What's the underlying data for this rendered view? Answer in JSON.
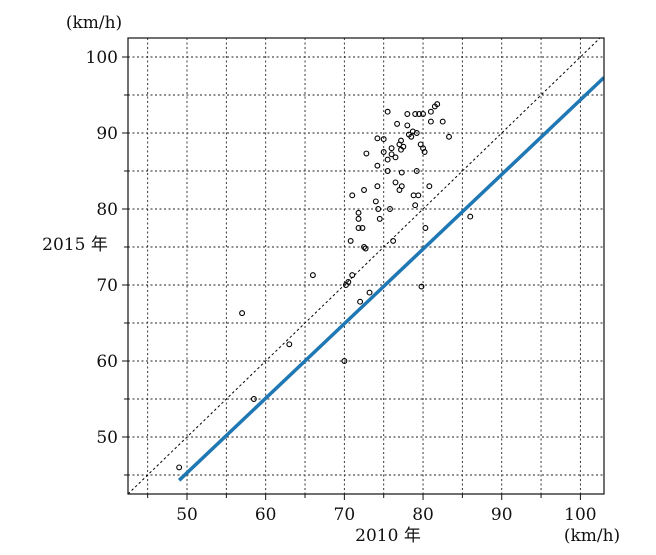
{
  "chart_data": {
    "type": "scatter",
    "title": "",
    "xlabel": "2010 年",
    "ylabel": "2015 年",
    "x_unit": "(km/h)",
    "y_unit": "(km/h)",
    "xlim": [
      42.5,
      103
    ],
    "ylim": [
      42.5,
      102.5
    ],
    "xticks": [
      50,
      60,
      70,
      80,
      90,
      100
    ],
    "yticks": [
      50,
      60,
      70,
      80,
      90,
      100
    ],
    "grid": true,
    "grid_style": "dotted",
    "series": [
      {
        "kind": "points",
        "marker": "open-circle",
        "color": "#000000",
        "points": [
          [
            49.0,
            46.0
          ],
          [
            57.0,
            66.3
          ],
          [
            58.5,
            55.0
          ],
          [
            63.0,
            62.2
          ],
          [
            66.0,
            71.3
          ],
          [
            70.0,
            60.0
          ],
          [
            70.2,
            70.0
          ],
          [
            70.5,
            70.4
          ],
          [
            70.8,
            75.8
          ],
          [
            71.0,
            81.8
          ],
          [
            71.0,
            71.3
          ],
          [
            71.8,
            79.5
          ],
          [
            71.8,
            78.7
          ],
          [
            71.8,
            77.5
          ],
          [
            72.0,
            67.8
          ],
          [
            72.3,
            77.5
          ],
          [
            72.5,
            75.0
          ],
          [
            72.5,
            82.5
          ],
          [
            72.7,
            74.8
          ],
          [
            72.8,
            87.3
          ],
          [
            73.2,
            69.0
          ],
          [
            74.0,
            81.0
          ],
          [
            74.2,
            83.0
          ],
          [
            74.2,
            89.3
          ],
          [
            74.2,
            85.7
          ],
          [
            74.3,
            80.0
          ],
          [
            74.5,
            78.7
          ],
          [
            75.0,
            89.2
          ],
          [
            75.0,
            87.5
          ],
          [
            75.5,
            85.0
          ],
          [
            75.5,
            86.5
          ],
          [
            75.5,
            92.8
          ],
          [
            75.8,
            80.0
          ],
          [
            76.0,
            88.0
          ],
          [
            76.0,
            87.2
          ],
          [
            76.2,
            75.8
          ],
          [
            76.5,
            86.8
          ],
          [
            76.5,
            83.5
          ],
          [
            76.7,
            91.2
          ],
          [
            77.0,
            82.5
          ],
          [
            77.0,
            88.5
          ],
          [
            77.2,
            87.8
          ],
          [
            77.2,
            89.0
          ],
          [
            77.3,
            84.8
          ],
          [
            77.3,
            83.0
          ],
          [
            77.5,
            88.2
          ],
          [
            78.0,
            92.5
          ],
          [
            78.0,
            91.0
          ],
          [
            78.2,
            89.8
          ],
          [
            78.5,
            89.5
          ],
          [
            78.7,
            90.2
          ],
          [
            78.8,
            81.8
          ],
          [
            79.0,
            92.5
          ],
          [
            79.0,
            80.5
          ],
          [
            79.2,
            90.0
          ],
          [
            79.2,
            85.0
          ],
          [
            79.4,
            81.8
          ],
          [
            79.5,
            92.5
          ],
          [
            79.7,
            88.5
          ],
          [
            79.8,
            69.8
          ],
          [
            80.0,
            88.0
          ],
          [
            80.0,
            92.5
          ],
          [
            80.2,
            87.5
          ],
          [
            80.3,
            77.5
          ],
          [
            80.8,
            83.0
          ],
          [
            81.0,
            92.8
          ],
          [
            81.0,
            91.5
          ],
          [
            81.5,
            93.5
          ],
          [
            81.8,
            93.8
          ],
          [
            82.5,
            91.5
          ],
          [
            83.3,
            89.5
          ],
          [
            86.0,
            79.0
          ]
        ]
      },
      {
        "kind": "line",
        "style": "dotted",
        "color": "#000000",
        "points": [
          [
            42.5,
            42.5
          ],
          [
            103,
            103
          ]
        ]
      },
      {
        "kind": "line",
        "style": "solid",
        "color": "#1f77b4",
        "points": [
          [
            49.0,
            44.3
          ],
          [
            103,
            97.3
          ]
        ]
      }
    ]
  }
}
